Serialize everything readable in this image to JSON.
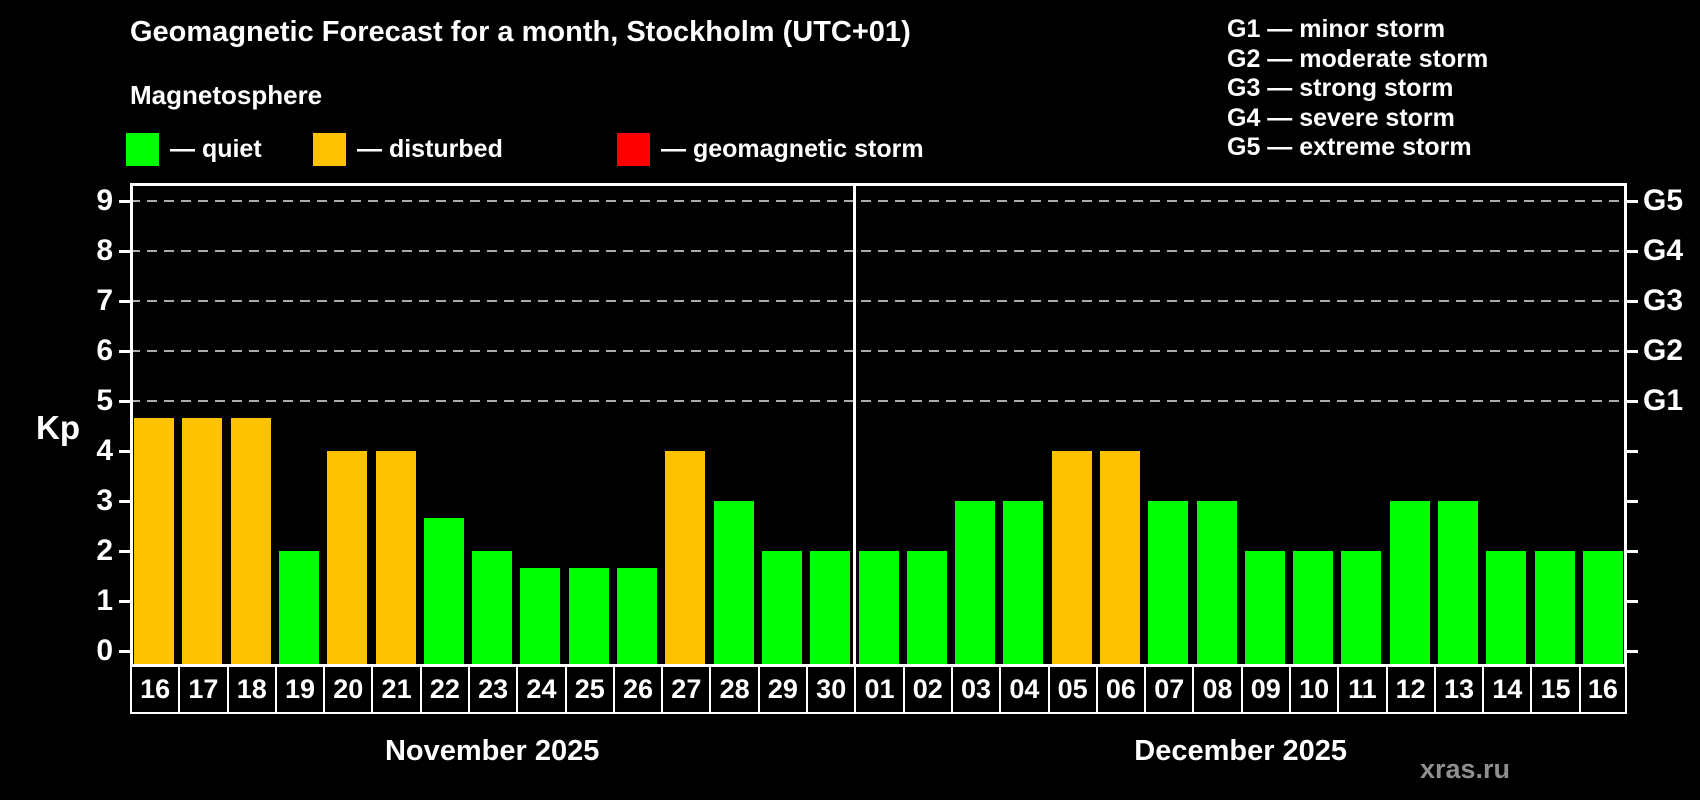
{
  "watermark": "xras.ru",
  "chart_data": {
    "type": "bar",
    "title": "Geomagnetic Forecast for a month, Stockholm (UTC+01)",
    "subtitle": "Magnetosphere",
    "ylabel": "Kp",
    "ylim": [
      -0.32,
      9.36
    ],
    "y_ticks": [
      0,
      1,
      2,
      3,
      4,
      5,
      6,
      7,
      8,
      9
    ],
    "grid_on": true,
    "grid_levels": [
      5,
      6,
      7,
      8,
      9
    ],
    "right_axis": [
      {
        "level": 5,
        "label": "G1"
      },
      {
        "level": 6,
        "label": "G2"
      },
      {
        "level": 7,
        "label": "G3"
      },
      {
        "level": 8,
        "label": "G4"
      },
      {
        "level": 9,
        "label": "G5"
      }
    ],
    "legend": [
      {
        "key": "quiet",
        "label": "— quiet",
        "color": "#00ff00"
      },
      {
        "key": "disturbed",
        "label": "— disturbed",
        "color": "#ffc200"
      },
      {
        "key": "storm",
        "label": "— geomagnetic storm",
        "color": "#ff0000"
      }
    ],
    "storm_scale_legend": [
      "G1 — minor storm",
      "G2 — moderate storm",
      "G3 — strong storm",
      "G4 — severe storm",
      "G5 — extreme storm"
    ],
    "colors": {
      "quiet": "#00ff00",
      "disturbed": "#ffc200",
      "storm": "#ff0000"
    },
    "months": [
      {
        "label": "November 2025",
        "days": [
          {
            "day": "16",
            "value": 4.67,
            "status": "disturbed"
          },
          {
            "day": "17",
            "value": 4.67,
            "status": "disturbed"
          },
          {
            "day": "18",
            "value": 4.67,
            "status": "disturbed"
          },
          {
            "day": "19",
            "value": 2,
            "status": "quiet"
          },
          {
            "day": "20",
            "value": 4,
            "status": "disturbed"
          },
          {
            "day": "21",
            "value": 4,
            "status": "disturbed"
          },
          {
            "day": "22",
            "value": 2.67,
            "status": "quiet"
          },
          {
            "day": "23",
            "value": 2,
            "status": "quiet"
          },
          {
            "day": "24",
            "value": 1.67,
            "status": "quiet"
          },
          {
            "day": "25",
            "value": 1.67,
            "status": "quiet"
          },
          {
            "day": "26",
            "value": 1.67,
            "status": "quiet"
          },
          {
            "day": "27",
            "value": 4,
            "status": "disturbed"
          },
          {
            "day": "28",
            "value": 3,
            "status": "quiet"
          },
          {
            "day": "29",
            "value": 2,
            "status": "quiet"
          },
          {
            "day": "30",
            "value": 2,
            "status": "quiet"
          }
        ]
      },
      {
        "label": "December 2025",
        "days": [
          {
            "day": "01",
            "value": 2,
            "status": "quiet"
          },
          {
            "day": "02",
            "value": 2,
            "status": "quiet"
          },
          {
            "day": "03",
            "value": 3,
            "status": "quiet"
          },
          {
            "day": "04",
            "value": 3,
            "status": "quiet"
          },
          {
            "day": "05",
            "value": 4,
            "status": "disturbed"
          },
          {
            "day": "06",
            "value": 4,
            "status": "disturbed"
          },
          {
            "day": "07",
            "value": 3,
            "status": "quiet"
          },
          {
            "day": "08",
            "value": 3,
            "status": "quiet"
          },
          {
            "day": "09",
            "value": 2,
            "status": "quiet"
          },
          {
            "day": "10",
            "value": 2,
            "status": "quiet"
          },
          {
            "day": "11",
            "value": 2,
            "status": "quiet"
          },
          {
            "day": "12",
            "value": 3,
            "status": "quiet"
          },
          {
            "day": "13",
            "value": 3,
            "status": "quiet"
          },
          {
            "day": "14",
            "value": 2,
            "status": "quiet"
          },
          {
            "day": "15",
            "value": 2,
            "status": "quiet"
          },
          {
            "day": "16",
            "value": 2,
            "status": "quiet"
          }
        ]
      }
    ]
  }
}
